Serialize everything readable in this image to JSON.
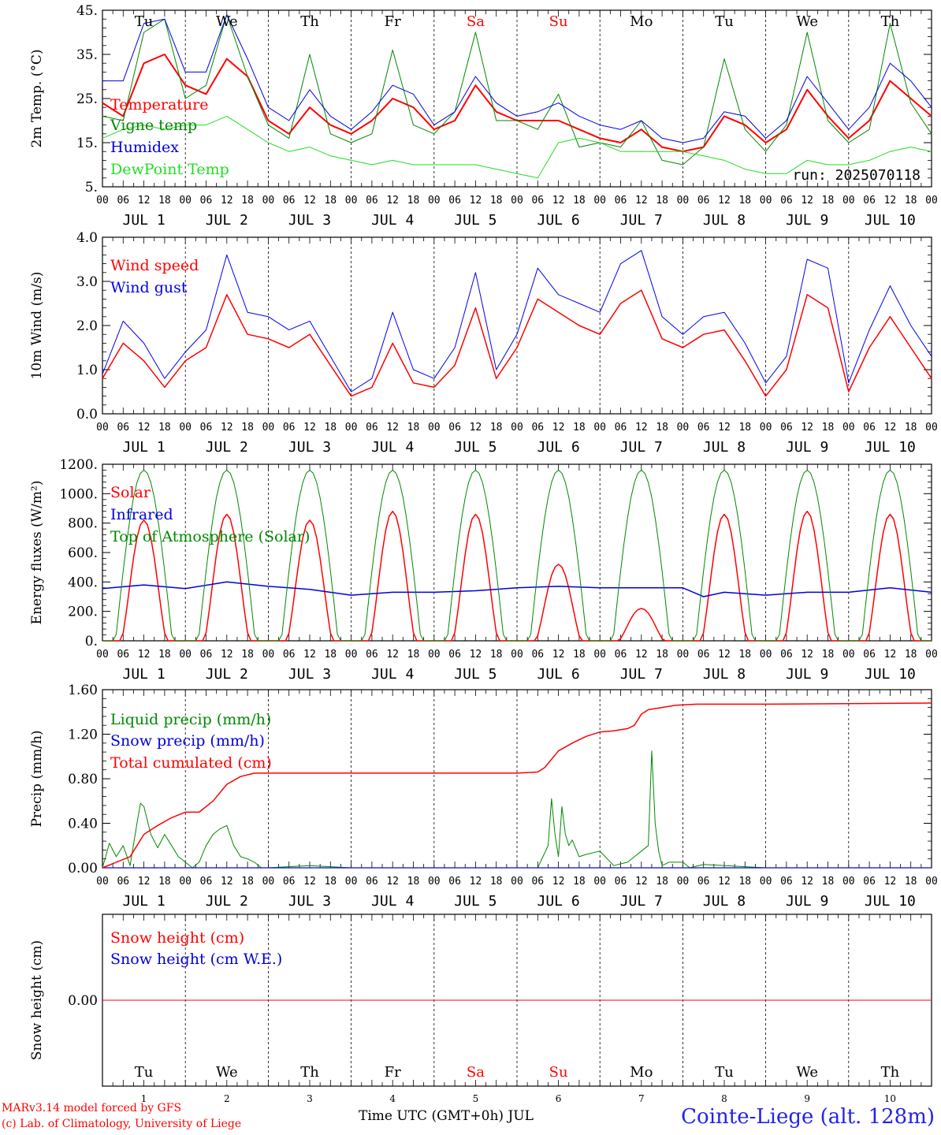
{
  "x_axis": {
    "hour_ticks": [
      "00",
      "06",
      "12",
      "18"
    ],
    "day_labels": [
      "JUL  1",
      "JUL  2",
      "JUL  3",
      "JUL  4",
      "JUL  5",
      "JUL  6",
      "JUL  7",
      "JUL  8",
      "JUL  9",
      "JUL 10"
    ],
    "weekdays": [
      "Tu",
      "We",
      "Th",
      "Fr",
      "Sa",
      "Su",
      "Mo",
      "Tu",
      "We",
      "Th"
    ],
    "weekday_colors": [
      "#000000",
      "#000000",
      "#000000",
      "#000000",
      "#ff0000",
      "#ff0000",
      "#000000",
      "#000000",
      "#000000",
      "#000000"
    ],
    "day_numbers": [
      "1",
      "2",
      "3",
      "4",
      "5",
      "6",
      "7",
      "8",
      "9",
      "10"
    ],
    "title": "Time UTC (GMT+0h) JUL"
  },
  "run_label": "run: 2025070118",
  "footer": {
    "line1": "MARv3.14 model forced by GFS",
    "line2": "(c) Lab. of Climatology, University of Liege",
    "station": "Cointe-Liege (alt. 128m)"
  },
  "chart_data": [
    {
      "type": "line",
      "ylabel": "2m Temp. (°C)",
      "ylim": [
        5,
        45
      ],
      "yticks": [
        "5.",
        "15.",
        "25.",
        "35.",
        "45."
      ],
      "x_unit": "hours since JUL 1 00 UTC",
      "series": [
        {
          "name": "Temperature",
          "color": "#ff0000",
          "width": 2,
          "x": [
            0,
            6,
            12,
            18,
            24,
            30,
            36,
            42,
            48,
            54,
            60,
            66,
            72,
            78,
            84,
            90,
            96,
            102,
            108,
            114,
            120,
            126,
            132,
            138,
            144,
            150,
            156,
            162,
            168,
            174,
            180,
            186,
            192,
            198,
            204,
            210,
            216,
            222,
            228,
            234,
            240
          ],
          "y": [
            24,
            21,
            33,
            35,
            28,
            26,
            34,
            30,
            20,
            17,
            23,
            19,
            17,
            20,
            25,
            23,
            18,
            20,
            28,
            22,
            20,
            20,
            20,
            18,
            16,
            15,
            18,
            14,
            13,
            14,
            21,
            19,
            15,
            18,
            27,
            21,
            16,
            20,
            29,
            25,
            21
          ]
        },
        {
          "name": "Vigne temp",
          "color": "#008800",
          "width": 1,
          "x": [
            0,
            6,
            12,
            18,
            24,
            30,
            36,
            42,
            48,
            54,
            60,
            66,
            72,
            78,
            84,
            90,
            96,
            102,
            108,
            114,
            120,
            126,
            132,
            138,
            144,
            150,
            156,
            162,
            168,
            174,
            180,
            186,
            192,
            198,
            204,
            210,
            216,
            222,
            228,
            234,
            240
          ],
          "y": [
            21,
            20,
            40,
            43,
            25,
            28,
            44,
            30,
            19,
            16,
            35,
            17,
            15,
            17,
            36,
            19,
            17,
            22,
            40,
            20,
            20,
            18,
            26,
            14,
            15,
            14,
            20,
            11,
            10,
            14,
            34,
            18,
            13,
            19,
            40,
            20,
            15,
            18,
            42,
            24,
            17
          ]
        },
        {
          "name": "Humidex",
          "color": "#0000dd",
          "width": 1,
          "x": [
            0,
            6,
            12,
            18,
            24,
            30,
            36,
            42,
            48,
            54,
            60,
            66,
            72,
            78,
            84,
            90,
            96,
            102,
            108,
            114,
            120,
            126,
            132,
            138,
            144,
            150,
            156,
            162,
            168,
            174,
            180,
            186,
            192,
            198,
            204,
            210,
            216,
            222,
            228,
            234,
            240
          ],
          "y": [
            29,
            29,
            42,
            43,
            31,
            31,
            44,
            34,
            23,
            20,
            27,
            21,
            18,
            22,
            28,
            26,
            19,
            22,
            30,
            24,
            21,
            22,
            24,
            21,
            19,
            18,
            20,
            16,
            15,
            16,
            22,
            21,
            16,
            20,
            30,
            24,
            18,
            23,
            33,
            29,
            23
          ]
        },
        {
          "name": "DewPoint Temp",
          "color": "#22dd22",
          "width": 1,
          "x": [
            0,
            6,
            12,
            18,
            24,
            30,
            36,
            42,
            48,
            54,
            60,
            66,
            72,
            78,
            84,
            90,
            96,
            102,
            108,
            114,
            120,
            126,
            132,
            138,
            144,
            150,
            156,
            162,
            168,
            174,
            180,
            186,
            192,
            198,
            204,
            210,
            216,
            222,
            228,
            234,
            240
          ],
          "y": [
            16,
            18,
            19,
            18,
            19,
            19,
            21,
            18,
            15,
            13,
            14,
            12,
            11,
            10,
            11,
            10,
            10,
            10,
            10,
            9,
            8,
            7,
            15,
            16,
            15,
            13,
            13,
            13,
            13,
            12,
            11,
            9,
            8,
            8,
            11,
            10,
            10,
            11,
            13,
            14,
            13
          ]
        }
      ]
    },
    {
      "type": "line",
      "ylabel": "10m Wind (m/s)",
      "ylim": [
        0,
        4
      ],
      "yticks": [
        "0.0",
        "1.0",
        "2.0",
        "3.0",
        "4.0"
      ],
      "x_unit": "hours since JUL 1 00 UTC",
      "series": [
        {
          "name": "Wind speed",
          "color": "#ff0000",
          "width": 1.5,
          "x": [
            0,
            6,
            12,
            18,
            24,
            30,
            36,
            42,
            48,
            54,
            60,
            66,
            72,
            78,
            84,
            90,
            96,
            102,
            108,
            114,
            120,
            126,
            132,
            138,
            144,
            150,
            156,
            162,
            168,
            174,
            180,
            186,
            192,
            198,
            204,
            210,
            216,
            222,
            228,
            234,
            240
          ],
          "y": [
            0.8,
            1.6,
            1.2,
            0.6,
            1.2,
            1.5,
            2.7,
            1.8,
            1.7,
            1.5,
            1.8,
            1.1,
            0.4,
            0.6,
            1.6,
            0.7,
            0.6,
            1.1,
            2.4,
            0.8,
            1.5,
            2.6,
            2.3,
            2.0,
            1.8,
            2.5,
            2.8,
            1.7,
            1.5,
            1.8,
            1.9,
            1.2,
            0.4,
            1.0,
            2.7,
            2.4,
            0.5,
            1.5,
            2.2,
            1.5,
            0.8
          ]
        },
        {
          "name": "Wind gust",
          "color": "#0000ee",
          "width": 1,
          "x": [
            0,
            6,
            12,
            18,
            24,
            30,
            36,
            42,
            48,
            54,
            60,
            66,
            72,
            78,
            84,
            90,
            96,
            102,
            108,
            114,
            120,
            126,
            132,
            138,
            144,
            150,
            156,
            162,
            168,
            174,
            180,
            186,
            192,
            198,
            204,
            210,
            216,
            222,
            228,
            234,
            240
          ],
          "y": [
            0.9,
            2.1,
            1.6,
            0.8,
            1.4,
            1.9,
            3.6,
            2.3,
            2.2,
            1.9,
            2.1,
            1.3,
            0.5,
            0.8,
            2.3,
            1.0,
            0.8,
            1.5,
            3.2,
            1.0,
            1.8,
            3.3,
            2.7,
            2.5,
            2.3,
            3.4,
            3.7,
            2.2,
            1.8,
            2.2,
            2.3,
            1.6,
            0.7,
            1.3,
            3.5,
            3.3,
            0.7,
            1.9,
            2.9,
            2.0,
            1.3
          ]
        }
      ]
    },
    {
      "type": "line",
      "ylabel": "Energy fluxes (W/m²)",
      "ylim": [
        0,
        1200
      ],
      "yticks": [
        "0.",
        "200.",
        "400.",
        "600.",
        "800.",
        "1000.",
        "1200."
      ],
      "x_unit": "hours since JUL 1 00 UTC",
      "series": [
        {
          "name": "Solar",
          "color": "#ff0000",
          "width": 1.5,
          "peaks": [
            820,
            860,
            820,
            880,
            860,
            520,
            220,
            860,
            880,
            860
          ]
        },
        {
          "name": "Infrared",
          "color": "#0000dd",
          "width": 1.5,
          "x": [
            0,
            12,
            24,
            36,
            48,
            60,
            72,
            84,
            96,
            108,
            120,
            132,
            144,
            156,
            168,
            174,
            180,
            192,
            204,
            216,
            228,
            240
          ],
          "y": [
            355,
            380,
            355,
            400,
            370,
            350,
            310,
            330,
            330,
            340,
            360,
            370,
            360,
            360,
            360,
            300,
            330,
            310,
            330,
            330,
            360,
            330
          ]
        },
        {
          "name": "Top of Atmosphere (Solar)",
          "color": "#008800",
          "width": 1,
          "peak": 1160
        }
      ]
    },
    {
      "type": "line",
      "ylabel": "Precip (mm/h)",
      "ylim": [
        0,
        1.6
      ],
      "yticks": [
        "0.00",
        "0.40",
        "0.80",
        "1.20",
        "1.60"
      ],
      "x_unit": "hours since JUL 1 00 UTC",
      "series": [
        {
          "name": "Liquid precip (mm/h)",
          "color": "#008800",
          "width": 1,
          "x": [
            0,
            2,
            4,
            6,
            8,
            10,
            11,
            12,
            14,
            16,
            18,
            20,
            22,
            24,
            26,
            28,
            30,
            32,
            34,
            36,
            38,
            40,
            42,
            44,
            46,
            48,
            60,
            72,
            120,
            126,
            129,
            130,
            131,
            132,
            133,
            134,
            135,
            136,
            138,
            140,
            144,
            148,
            152,
            154,
            156,
            158,
            159,
            160,
            161,
            162,
            164,
            168,
            170,
            174,
            192,
            240
          ],
          "y": [
            0,
            0.22,
            0.1,
            0.2,
            0.02,
            0.4,
            0.58,
            0.55,
            0.3,
            0.18,
            0.3,
            0.2,
            0.1,
            0.05,
            0,
            0.05,
            0.2,
            0.3,
            0.35,
            0.38,
            0.2,
            0.1,
            0.08,
            0.05,
            0,
            0,
            0.02,
            0,
            0,
            0,
            0.2,
            0.62,
            0.3,
            0.1,
            0.55,
            0.3,
            0.2,
            0.25,
            0.1,
            0.12,
            0.15,
            0.02,
            0.05,
            0.1,
            0.15,
            0.2,
            1.05,
            0.4,
            0.15,
            0.02,
            0.05,
            0.05,
            0,
            0.03,
            0,
            0
          ]
        },
        {
          "name": "Snow precip (mm/h)",
          "color": "#0000dd",
          "width": 1,
          "x": [
            0,
            240
          ],
          "y": [
            0,
            0
          ]
        },
        {
          "name": "Total cumulated (cm)",
          "color": "#ff0000",
          "width": 1.5,
          "x": [
            0,
            4,
            8,
            12,
            16,
            20,
            24,
            28,
            32,
            36,
            40,
            44,
            48,
            120,
            126,
            128,
            132,
            136,
            140,
            144,
            148,
            152,
            154,
            156,
            158,
            162,
            166,
            172,
            180,
            192,
            240
          ],
          "y": [
            0,
            0.05,
            0.1,
            0.3,
            0.38,
            0.45,
            0.5,
            0.5,
            0.6,
            0.75,
            0.82,
            0.85,
            0.85,
            0.85,
            0.86,
            0.9,
            1.05,
            1.12,
            1.18,
            1.22,
            1.23,
            1.25,
            1.28,
            1.38,
            1.42,
            1.44,
            1.46,
            1.47,
            1.47,
            1.47,
            1.48
          ]
        }
      ]
    },
    {
      "type": "line",
      "ylabel": "Snow height (cm)",
      "ylim": [
        -1,
        1
      ],
      "yticks": [
        "0.00"
      ],
      "x_unit": "hours since JUL 1 00 UTC",
      "series": [
        {
          "name": "Snow height (cm)",
          "color": "#ff0000",
          "width": 1,
          "x": [
            0,
            240
          ],
          "y": [
            0,
            0
          ]
        },
        {
          "name": "Snow height (cm W.E.)",
          "color": "#0000dd",
          "width": 1,
          "x": [
            0,
            240
          ],
          "y": [
            0,
            0
          ],
          "hidden": true
        }
      ]
    }
  ]
}
